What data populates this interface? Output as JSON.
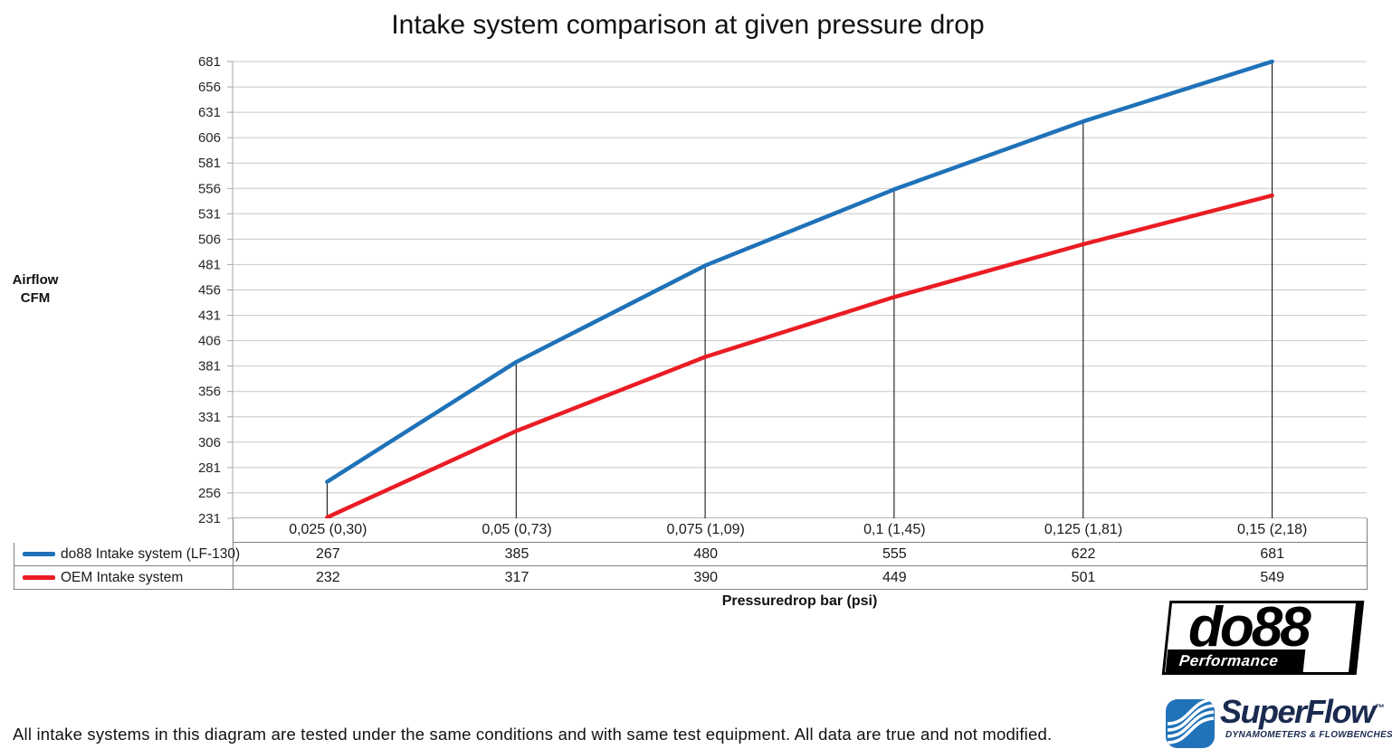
{
  "title": "Intake system comparison at given pressure drop",
  "chart_data": {
    "type": "line",
    "title": "Intake system comparison at given pressure drop",
    "xlabel": "Pressuredrop bar (psi)",
    "ylabel": "Airflow\nCFM",
    "categories": [
      "0,025 (0,30)",
      "0,05 (0,73)",
      "0,075 (1,09)",
      "0,1 (1,45)",
      "0,125 (1,81)",
      "0,15 (2,18)"
    ],
    "series": [
      {
        "name": "do88 Intake system (LF-130)",
        "color": "#1F72B8",
        "values": [
          267,
          385,
          480,
          555,
          622,
          681
        ]
      },
      {
        "name": "OEM Intake system",
        "color": "#EA1C24",
        "values": [
          232,
          317,
          390,
          449,
          501,
          549
        ]
      }
    ],
    "ylim": [
      231,
      681
    ],
    "ytick_step": 25,
    "grid": true,
    "drop_lines": true,
    "legend_position": "table-left"
  },
  "footer": {
    "note": "All intake systems in this diagram are tested under the same conditions and with same test equipment. All data are true and not modified."
  },
  "logos": {
    "do88": {
      "name": "do88",
      "tagline": "Performance",
      "color": "#000000"
    },
    "superflow": {
      "name": "SuperFlow",
      "trademark": "™",
      "tagline": "DYNAMOMETERS & FLOWBENCHES",
      "icon_color": "#2173B9",
      "text_color": "#1B2B50"
    }
  }
}
